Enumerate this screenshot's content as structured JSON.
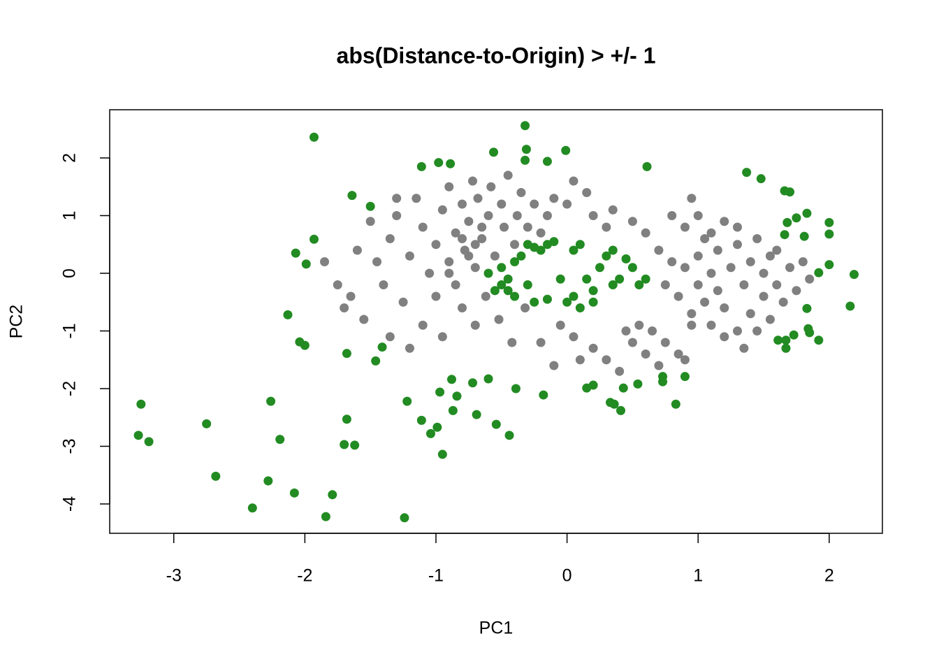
{
  "chart_data": {
    "type": "scatter",
    "title": "abs(Distance-to-Origin) > +/- 1",
    "x_label": "PC1",
    "y_label": "PC2",
    "xlim": [
      -3.489,
      2.406
    ],
    "ylim": [
      -4.509,
      2.836
    ],
    "xticks": [
      -3,
      -2,
      -1,
      0,
      1,
      2
    ],
    "yticks": [
      -4,
      -3,
      -2,
      -1,
      0,
      1,
      2
    ],
    "series": [
      {
        "color": "#808080",
        "x": [
          -1.45,
          -1.4,
          -1.35,
          -1.3,
          -1.25,
          -1.2,
          -1.15,
          -1.1,
          -1.1,
          -1.05,
          -1.0,
          -1.0,
          -0.95,
          -0.95,
          -0.9,
          -0.9,
          -0.85,
          -0.85,
          -0.8,
          -0.8,
          -0.78,
          -0.75,
          -0.72,
          -0.7,
          -0.7,
          -0.68,
          -0.65,
          -0.62,
          -0.6,
          -0.58,
          -0.55,
          -0.52,
          -0.5,
          -0.48,
          -0.45,
          -0.42,
          -0.4,
          -0.38,
          -0.35,
          -0.32,
          -0.3,
          -0.25,
          -0.2,
          -0.15,
          -0.1,
          -0.9,
          -0.75,
          -0.65,
          -0.8,
          -0.7,
          -1.2,
          -1.3,
          -1.55,
          -1.65,
          -1.7,
          -1.75,
          -1.6,
          -1.5,
          -1.85,
          -1.35,
          0.0,
          0.05,
          0.15,
          0.2,
          0.3,
          0.35,
          -0.05,
          0.05,
          0.1,
          -0.1,
          -0.2,
          0.2,
          0.3,
          0.4,
          0.5,
          0.55,
          0.6,
          0.65,
          0.7,
          0.75,
          0.85,
          0.9,
          0.45,
          0.6,
          0.7,
          0.8,
          0.9,
          0.95,
          0.5,
          0.75,
          0.8,
          0.85,
          0.9,
          0.95,
          1.0,
          1.0,
          1.05,
          1.05,
          1.1,
          1.1,
          1.15,
          1.15,
          1.2,
          1.2,
          1.25,
          1.3,
          1.3,
          1.35,
          1.4,
          1.4,
          1.45,
          1.5,
          1.5,
          1.55,
          1.6,
          1.6,
          1.65,
          1.7,
          1.75,
          1.8,
          1.85,
          1.35,
          1.2,
          1.0,
          1.3,
          1.45,
          1.55,
          0.95,
          1.1
        ],
        "y": [
          0.2,
          -0.2,
          0.6,
          1.0,
          -0.5,
          0.3,
          1.3,
          -0.9,
          0.8,
          0.0,
          0.5,
          -0.4,
          1.1,
          -1.1,
          0.2,
          1.5,
          -0.2,
          0.7,
          1.2,
          -0.6,
          0.4,
          0.9,
          1.6,
          -0.9,
          0.1,
          1.3,
          0.6,
          -0.4,
          1.0,
          1.5,
          0.3,
          -0.8,
          1.2,
          0.8,
          1.7,
          -1.2,
          0.5,
          1.0,
          1.4,
          -0.6,
          0.8,
          1.2,
          0.7,
          1.0,
          1.3,
          0.0,
          0.3,
          0.8,
          0.6,
          0.5,
          -1.3,
          1.3,
          -0.8,
          -0.4,
          -0.6,
          -0.2,
          0.4,
          0.9,
          0.2,
          -1.1,
          1.2,
          1.6,
          1.4,
          1.0,
          0.8,
          1.1,
          -0.9,
          -1.1,
          -1.5,
          -1.6,
          -1.2,
          -1.3,
          -1.5,
          -1.7,
          -1.2,
          -0.9,
          -1.4,
          -1.0,
          -1.6,
          -1.2,
          -1.4,
          -1.5,
          -1.0,
          0.7,
          0.4,
          1.0,
          0.8,
          1.3,
          0.9,
          -0.2,
          0.2,
          -0.4,
          0.1,
          -0.7,
          0.3,
          -0.2,
          0.6,
          -0.5,
          0.0,
          -0.9,
          0.4,
          -0.3,
          0.9,
          -0.6,
          0.1,
          -1.0,
          0.5,
          -0.2,
          0.2,
          -0.7,
          0.6,
          -0.4,
          0.0,
          -0.8,
          0.4,
          -0.2,
          -0.5,
          0.1,
          -0.3,
          0.2,
          -0.1,
          -1.3,
          -1.1,
          1.0,
          0.8,
          -1.0,
          0.3,
          -0.9,
          0.7
        ]
      },
      {
        "color": "#228b22",
        "x": [
          -1.93,
          -3.25,
          -3.27,
          -3.19,
          -2.75,
          -2.68,
          -2.4,
          -2.28,
          -2.26,
          -2.19,
          -2.08,
          -1.84,
          -1.79,
          -1.24,
          -2.13,
          -2.04,
          -2.0,
          -2.07,
          -1.99,
          -1.93,
          -1.68,
          -1.7,
          -1.62,
          -1.68,
          -1.64,
          -1.5,
          -1.41,
          -1.46,
          -1.22,
          -1.11,
          -1.04,
          -0.99,
          -0.95,
          -0.97,
          -0.88,
          -0.87,
          -0.84,
          -1.11,
          -0.98,
          -0.89,
          -0.72,
          -0.69,
          -0.6,
          -0.54,
          -0.44,
          -0.39,
          -0.56,
          -0.32,
          -0.31,
          -0.32,
          -0.15,
          -0.01,
          -0.18,
          0.15,
          0.2,
          0.33,
          0.36,
          0.41,
          0.43,
          0.54,
          0.73,
          0.73,
          0.9,
          0.83,
          0.61,
          1.37,
          1.48,
          1.66,
          1.7,
          1.68,
          1.75,
          1.83,
          1.66,
          1.81,
          2.0,
          2.0,
          2.0,
          1.92,
          2.19,
          2.16,
          1.83,
          1.84,
          1.85,
          1.92,
          1.73,
          1.67,
          1.61,
          1.67,
          -0.6,
          -0.5,
          -0.45,
          -0.4,
          -0.35,
          -0.3,
          -0.25,
          -0.2,
          -0.15,
          -0.1,
          0.05,
          0.1,
          0.15,
          0.2,
          0.25,
          0.3,
          0.35,
          0.4,
          0.45,
          0.5,
          0.55,
          0.6,
          -0.55,
          -0.5,
          -0.4,
          -0.3,
          -0.25,
          0.0,
          0.05,
          0.2,
          0.35,
          -0.05,
          -0.15,
          0.1,
          -0.45
        ],
        "y": [
          2.36,
          -2.27,
          -2.81,
          -2.92,
          -2.61,
          -3.52,
          -4.07,
          -3.6,
          -2.22,
          -2.88,
          -3.81,
          -4.22,
          -3.84,
          -4.24,
          -0.72,
          -1.19,
          -1.25,
          0.35,
          0.16,
          0.59,
          -2.53,
          -2.97,
          -2.98,
          -1.39,
          1.35,
          1.16,
          -1.28,
          -1.52,
          -2.22,
          -2.55,
          -2.78,
          -2.67,
          -3.14,
          -2.06,
          -1.84,
          -2.38,
          -2.13,
          1.85,
          1.92,
          1.9,
          -1.9,
          -2.45,
          -1.83,
          -2.62,
          -2.81,
          -2.0,
          2.1,
          2.56,
          2.15,
          1.96,
          1.94,
          2.13,
          -2.11,
          -1.99,
          -1.94,
          -2.24,
          -2.27,
          -2.38,
          -1.99,
          -1.92,
          -1.88,
          -1.79,
          -1.79,
          -2.27,
          1.85,
          1.75,
          1.64,
          1.43,
          1.41,
          0.88,
          0.96,
          1.04,
          0.67,
          0.64,
          0.88,
          0.68,
          0.15,
          0.01,
          -0.02,
          -0.57,
          -0.61,
          -0.96,
          -1.03,
          -1.16,
          -1.07,
          -1.16,
          -1.16,
          -1.3,
          0.0,
          -0.2,
          -0.3,
          0.2,
          0.3,
          0.5,
          0.45,
          0.4,
          0.5,
          0.55,
          0.4,
          0.5,
          -0.1,
          -0.3,
          0.1,
          0.3,
          0.4,
          -0.1,
          0.25,
          0.1,
          -0.2,
          -0.1,
          -0.3,
          0.1,
          -0.4,
          -0.2,
          -0.5,
          -0.5,
          -0.4,
          -0.5,
          -0.2,
          -0.1,
          -0.45,
          -0.6,
          -0.1
        ]
      }
    ]
  }
}
